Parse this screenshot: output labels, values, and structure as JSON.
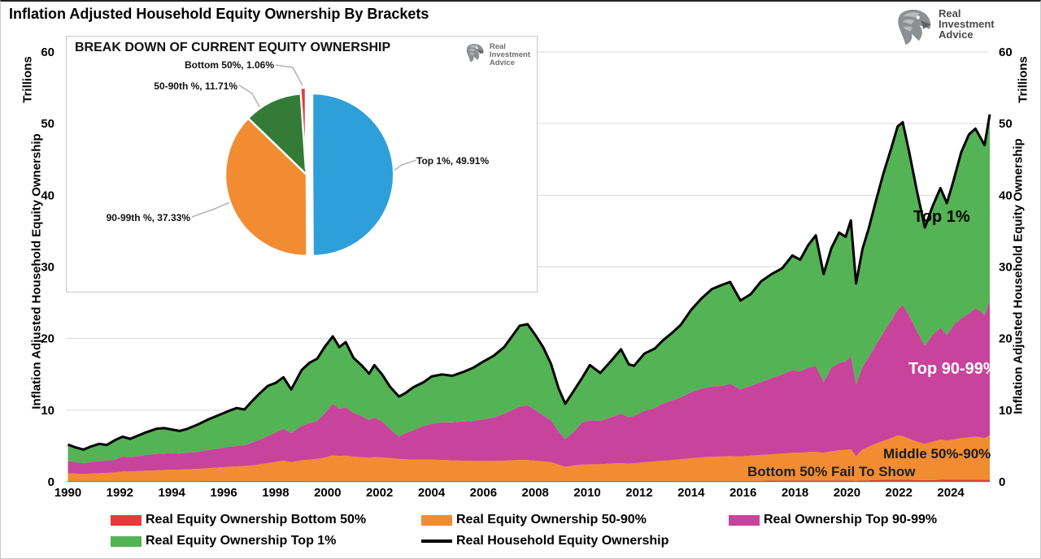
{
  "page": {
    "title": "Inflation Adjusted Household Equity Ownership By Brackets"
  },
  "logo": {
    "line1": "Real",
    "line2": "Investment",
    "line3": "Advice"
  },
  "inset": {
    "title": "BREAK DOWN OF CURRENT EQUITY OWNERSHIP",
    "logo": {
      "line1": "Real",
      "line2": "Investment",
      "line3": "Advice"
    }
  },
  "axes": {
    "y_left_unit": "Trillions",
    "y_right_unit": "Trillions",
    "y_left_label": "Inflation Adjusted Household Equity Ownership",
    "y_right_label": "Inflation Adjusted Household Equity Ownership"
  },
  "annotations": [
    {
      "text": "Top 1%",
      "color": "#000000"
    },
    {
      "text": "Top 90-99%",
      "color": "#ffffff"
    },
    {
      "text": "Middle 50%-90%",
      "color": "#1a1a1a"
    },
    {
      "text": "Bottom 50% Fail To Show",
      "color": "#1f1f1f"
    }
  ],
  "legend": {
    "items": [
      {
        "label": "Real Equity Ownership Bottom 50%",
        "color": "#e23b3c",
        "type": "area"
      },
      {
        "label": "Real Equity Ownership 50-90%",
        "color": "#f28c33",
        "type": "area"
      },
      {
        "label": "Real Ownership Top 90-99%",
        "color": "#c8439b",
        "type": "area"
      },
      {
        "label": "Real Equity Ownership Top 1%",
        "color": "#54b354",
        "type": "area"
      },
      {
        "label": "Real Household Equity Ownership",
        "color": "#000000",
        "type": "line"
      }
    ]
  },
  "chart_data": [
    {
      "type": "pie",
      "title": "BREAK DOWN OF CURRENT EQUITY OWNERSHIP",
      "start_angle_deg": 0,
      "direction": "clockwise-from-12",
      "slices": [
        {
          "name": "Top 1%",
          "value": 49.91,
          "color": "#2e9fd9",
          "label_text": "Top 1%, 49.91%"
        },
        {
          "name": "90-99th %",
          "value": 37.33,
          "color": "#f28c33",
          "label_text": "90-99th %, 37.33%"
        },
        {
          "name": "50-90th %",
          "value": 11.71,
          "color": "#337b37",
          "label_text": "50-90th %, 11.71%"
        },
        {
          "name": "Bottom 50%",
          "value": 1.06,
          "color": "#e23b3c",
          "label_text": "Bottom 50%, 1.06%"
        }
      ]
    },
    {
      "type": "area",
      "title": "Inflation Adjusted Household Equity Ownership By Brackets",
      "ylabel": "Inflation Adjusted Household Equity Ownership",
      "unit": "Trillions",
      "xlim": [
        1990,
        2025.5
      ],
      "ylim": [
        0,
        60
      ],
      "xticks": [
        1990,
        1992,
        1994,
        1996,
        1998,
        2000,
        2002,
        2004,
        2006,
        2008,
        2010,
        2012,
        2014,
        2016,
        2018,
        2020,
        2022,
        2024
      ],
      "yticks": [
        0,
        10,
        20,
        30,
        40,
        50,
        60
      ],
      "grid": "horizontal",
      "stacking": "columns after year are CUMULATIVE stack tops in $ trillions; green band = total minus p90_99_cum; black line = total",
      "columns": [
        "year",
        "bottom50_cum",
        "p50_90_cum",
        "p90_99_cum",
        "total"
      ],
      "series_colors": {
        "bottom50": "#e23b3c",
        "p50_90": "#f28c33",
        "p90_99": "#c8439b",
        "top1": "#54b354",
        "total_line": "#000000"
      },
      "rows": [
        [
          1990.0,
          0.1,
          1.2,
          2.9,
          5.2
        ],
        [
          1990.3,
          0.1,
          1.15,
          2.75,
          4.8
        ],
        [
          1990.6,
          0.1,
          1.1,
          2.6,
          4.5
        ],
        [
          1990.9,
          0.1,
          1.15,
          2.75,
          4.95
        ],
        [
          1991.2,
          0.1,
          1.2,
          2.9,
          5.3
        ],
        [
          1991.5,
          0.1,
          1.25,
          2.95,
          5.15
        ],
        [
          1991.8,
          0.1,
          1.3,
          3.1,
          5.8
        ],
        [
          1992.1,
          0.1,
          1.45,
          3.55,
          6.3
        ],
        [
          1992.4,
          0.1,
          1.45,
          3.45,
          6.0
        ],
        [
          1992.7,
          0.1,
          1.5,
          3.6,
          6.45
        ],
        [
          1993.0,
          0.1,
          1.55,
          3.75,
          6.9
        ],
        [
          1993.4,
          0.1,
          1.6,
          3.9,
          7.4
        ],
        [
          1993.7,
          0.1,
          1.65,
          3.95,
          7.5
        ],
        [
          1994.0,
          0.1,
          1.7,
          4.0,
          7.3
        ],
        [
          1994.3,
          0.1,
          1.7,
          3.95,
          7.1
        ],
        [
          1994.6,
          0.1,
          1.75,
          4.05,
          7.4
        ],
        [
          1995.0,
          0.1,
          1.8,
          4.2,
          8.0
        ],
        [
          1995.4,
          0.12,
          1.9,
          4.45,
          8.7
        ],
        [
          1995.8,
          0.12,
          2.0,
          4.65,
          9.3
        ],
        [
          1996.2,
          0.12,
          2.1,
          4.9,
          9.9
        ],
        [
          1996.5,
          0.12,
          2.15,
          5.0,
          10.3
        ],
        [
          1996.8,
          0.12,
          2.2,
          5.1,
          10.1
        ],
        [
          1997.1,
          0.12,
          2.3,
          5.5,
          11.3
        ],
        [
          1997.4,
          0.12,
          2.45,
          5.9,
          12.4
        ],
        [
          1997.7,
          0.12,
          2.6,
          6.4,
          13.4
        ],
        [
          1998.0,
          0.12,
          2.8,
          6.9,
          13.8
        ],
        [
          1998.3,
          0.12,
          2.95,
          7.4,
          14.6
        ],
        [
          1998.6,
          0.12,
          2.75,
          6.8,
          12.9
        ],
        [
          1999.0,
          0.15,
          3.0,
          7.8,
          15.6
        ],
        [
          1999.3,
          0.15,
          3.1,
          8.2,
          16.6
        ],
        [
          1999.6,
          0.15,
          3.2,
          8.5,
          17.2
        ],
        [
          1999.9,
          0.15,
          3.4,
          9.6,
          18.9
        ],
        [
          2000.2,
          0.15,
          3.7,
          10.9,
          20.3
        ],
        [
          2000.45,
          0.15,
          3.6,
          10.2,
          18.8
        ],
        [
          2000.7,
          0.15,
          3.65,
          10.4,
          19.5
        ],
        [
          2001.0,
          0.15,
          3.5,
          9.6,
          17.3
        ],
        [
          2001.3,
          0.15,
          3.45,
          9.2,
          16.3
        ],
        [
          2001.6,
          0.15,
          3.35,
          8.6,
          15.1
        ],
        [
          2001.8,
          0.15,
          3.45,
          9.0,
          16.3
        ],
        [
          2002.1,
          0.15,
          3.4,
          8.4,
          15.0
        ],
        [
          2002.4,
          0.15,
          3.3,
          7.4,
          13.3
        ],
        [
          2002.75,
          0.15,
          3.2,
          6.3,
          11.9
        ],
        [
          2003.0,
          0.15,
          3.15,
          6.8,
          12.4
        ],
        [
          2003.3,
          0.15,
          3.1,
          7.2,
          13.2
        ],
        [
          2003.7,
          0.15,
          3.1,
          7.8,
          13.9
        ],
        [
          2004.0,
          0.15,
          3.1,
          8.1,
          14.7
        ],
        [
          2004.4,
          0.15,
          3.05,
          8.3,
          15.0
        ],
        [
          2004.8,
          0.15,
          3.0,
          8.3,
          14.8
        ],
        [
          2005.2,
          0.15,
          2.95,
          8.4,
          15.3
        ],
        [
          2005.6,
          0.15,
          2.9,
          8.5,
          15.9
        ],
        [
          2006.0,
          0.15,
          2.9,
          8.7,
          16.8
        ],
        [
          2006.4,
          0.15,
          2.9,
          9.0,
          17.6
        ],
        [
          2006.8,
          0.15,
          2.95,
          9.5,
          18.8
        ],
        [
          2007.1,
          0.15,
          3.0,
          10.0,
          20.3
        ],
        [
          2007.4,
          0.15,
          3.05,
          10.5,
          21.8
        ],
        [
          2007.7,
          0.15,
          3.05,
          10.7,
          22.0
        ],
        [
          2008.0,
          0.15,
          2.95,
          10.0,
          20.5
        ],
        [
          2008.3,
          0.15,
          2.85,
          9.3,
          18.8
        ],
        [
          2008.6,
          0.15,
          2.75,
          8.6,
          16.5
        ],
        [
          2008.9,
          0.12,
          2.4,
          7.0,
          13.0
        ],
        [
          2009.15,
          0.12,
          2.1,
          6.0,
          10.9
        ],
        [
          2009.5,
          0.12,
          2.3,
          7.0,
          12.8
        ],
        [
          2009.8,
          0.12,
          2.4,
          8.3,
          14.5
        ],
        [
          2010.1,
          0.12,
          2.45,
          8.6,
          16.3
        ],
        [
          2010.5,
          0.12,
          2.45,
          8.5,
          15.2
        ],
        [
          2010.9,
          0.12,
          2.55,
          9.0,
          16.8
        ],
        [
          2011.3,
          0.12,
          2.6,
          9.5,
          18.5
        ],
        [
          2011.6,
          0.12,
          2.55,
          9.0,
          16.4
        ],
        [
          2011.8,
          0.12,
          2.6,
          9.2,
          16.2
        ],
        [
          2012.2,
          0.12,
          2.75,
          9.9,
          17.9
        ],
        [
          2012.6,
          0.12,
          2.85,
          10.3,
          18.6
        ],
        [
          2012.9,
          0.12,
          2.95,
          10.9,
          19.7
        ],
        [
          2013.3,
          0.15,
          3.05,
          11.4,
          20.9
        ],
        [
          2013.6,
          0.15,
          3.15,
          11.8,
          21.9
        ],
        [
          2014.0,
          0.15,
          3.3,
          12.5,
          24.0
        ],
        [
          2014.4,
          0.15,
          3.4,
          13.0,
          25.6
        ],
        [
          2014.8,
          0.15,
          3.5,
          13.3,
          26.9
        ],
        [
          2015.2,
          0.15,
          3.55,
          13.4,
          27.5
        ],
        [
          2015.5,
          0.15,
          3.6,
          13.7,
          27.9
        ],
        [
          2015.9,
          0.15,
          3.55,
          12.9,
          25.3
        ],
        [
          2016.3,
          0.15,
          3.65,
          13.4,
          26.2
        ],
        [
          2016.7,
          0.15,
          3.75,
          13.9,
          28.0
        ],
        [
          2017.1,
          0.18,
          3.85,
          14.5,
          29.0
        ],
        [
          2017.5,
          0.18,
          3.95,
          15.0,
          29.8
        ],
        [
          2017.9,
          0.18,
          4.05,
          15.6,
          31.6
        ],
        [
          2018.2,
          0.18,
          4.05,
          15.4,
          31.0
        ],
        [
          2018.5,
          0.18,
          4.15,
          15.9,
          33.0
        ],
        [
          2018.8,
          0.18,
          4.2,
          16.2,
          34.4
        ],
        [
          2019.1,
          0.18,
          4.05,
          13.9,
          29.0
        ],
        [
          2019.4,
          0.18,
          4.25,
          15.9,
          32.6
        ],
        [
          2019.7,
          0.18,
          4.4,
          16.6,
          34.8
        ],
        [
          2019.95,
          0.18,
          4.45,
          16.8,
          34.2
        ],
        [
          2020.15,
          0.18,
          4.55,
          17.5,
          36.5
        ],
        [
          2020.35,
          0.15,
          3.6,
          13.6,
          27.7
        ],
        [
          2020.6,
          0.2,
          4.5,
          16.0,
          32.5
        ],
        [
          2020.85,
          0.22,
          4.9,
          17.5,
          35.5
        ],
        [
          2021.1,
          0.25,
          5.3,
          19.0,
          39.0
        ],
        [
          2021.4,
          0.28,
          5.7,
          20.8,
          43.0
        ],
        [
          2021.7,
          0.3,
          6.1,
          22.5,
          46.5
        ],
        [
          2021.95,
          0.3,
          6.5,
          24.0,
          49.6
        ],
        [
          2022.15,
          0.3,
          6.4,
          24.7,
          50.2
        ],
        [
          2022.4,
          0.28,
          6.0,
          23.2,
          46.0
        ],
        [
          2022.7,
          0.26,
          5.6,
          21.0,
          40.5
        ],
        [
          2023.0,
          0.25,
          5.3,
          19.0,
          35.5
        ],
        [
          2023.3,
          0.26,
          5.6,
          20.5,
          38.5
        ],
        [
          2023.6,
          0.28,
          5.9,
          21.5,
          41.0
        ],
        [
          2023.85,
          0.28,
          5.75,
          20.5,
          38.9
        ],
        [
          2024.1,
          0.28,
          5.9,
          21.8,
          42.0
        ],
        [
          2024.4,
          0.3,
          6.1,
          22.8,
          46.0
        ],
        [
          2024.7,
          0.3,
          6.2,
          23.5,
          48.5
        ],
        [
          2024.95,
          0.3,
          6.3,
          24.2,
          49.3
        ],
        [
          2025.15,
          0.3,
          6.2,
          23.8,
          48.0
        ],
        [
          2025.3,
          0.3,
          6.1,
          23.2,
          47.0
        ],
        [
          2025.5,
          0.32,
          6.5,
          25.3,
          51.3
        ]
      ]
    }
  ]
}
